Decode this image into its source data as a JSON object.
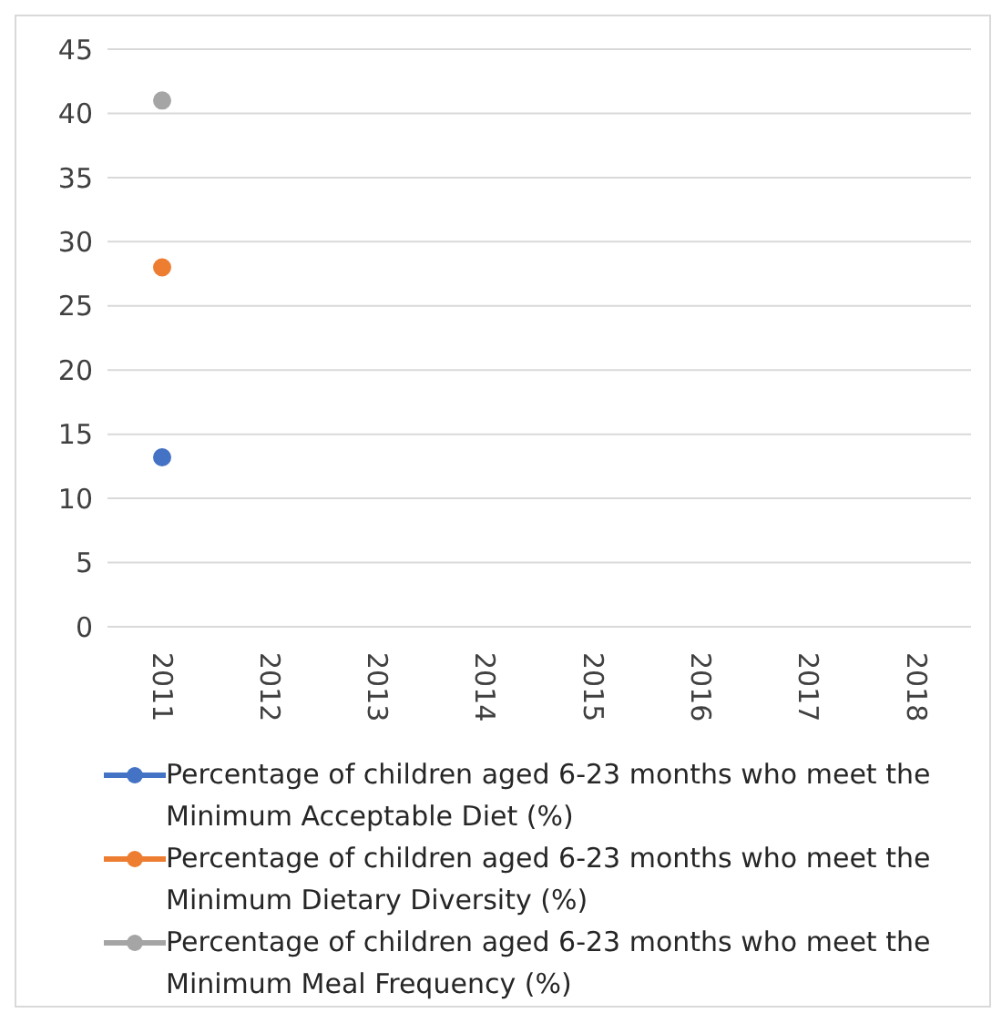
{
  "chart_data": {
    "type": "line",
    "categories": [
      "2011",
      "2012",
      "2013",
      "2014",
      "2015",
      "2016",
      "2017",
      "2018"
    ],
    "series": [
      {
        "name": "Percentage of children aged 6-23 months who meet the Minimum Acceptable Diet (%)",
        "color": "#4472c4",
        "values": [
          13.2,
          null,
          null,
          null,
          null,
          null,
          null,
          null
        ]
      },
      {
        "name": "Percentage of children aged 6-23 months who meet the Minimum Dietary Diversity (%)",
        "color": "#ed7d31",
        "values": [
          28,
          null,
          null,
          null,
          null,
          null,
          null,
          null
        ]
      },
      {
        "name": "Percentage of children aged 6-23 months who meet the Minimum Meal Frequency (%)",
        "color": "#a5a5a5",
        "values": [
          41,
          null,
          null,
          null,
          null,
          null,
          null,
          null
        ]
      }
    ],
    "ylim": [
      0,
      45
    ],
    "yticks": [
      0,
      5,
      10,
      15,
      20,
      25,
      30,
      35,
      40,
      45
    ],
    "grid": "y",
    "legend": "bottom",
    "marker": "circle",
    "line_style": "solid"
  }
}
